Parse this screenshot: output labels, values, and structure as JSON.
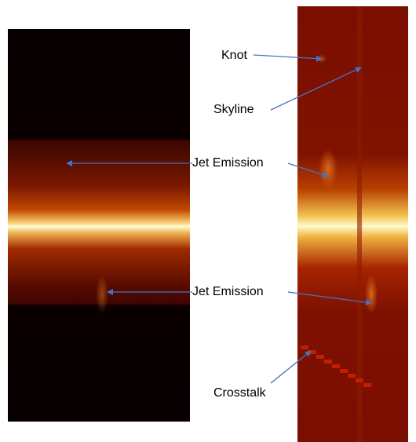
{
  "labels": [
    "Knot",
    "Skyline",
    "Jet Emission",
    "Jet Emission",
    "Crosstalk"
  ]
}
